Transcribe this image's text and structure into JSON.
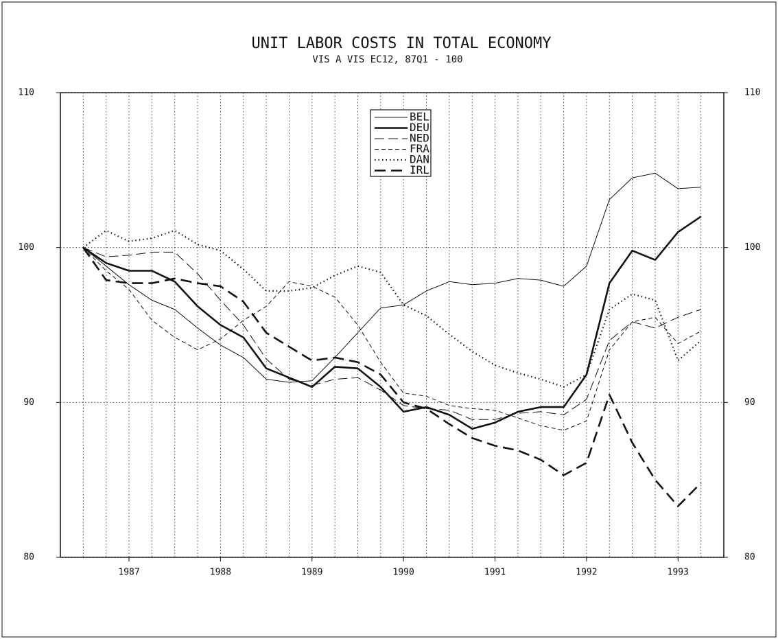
{
  "chart_data": {
    "type": "line",
    "title": "UNIT LABOR COSTS IN TOTAL ECONOMY",
    "subtitle": "VIS A VIS EC12, 87Q1 - 100",
    "x": [
      1987.0,
      1987.25,
      1987.5,
      1987.75,
      1988.0,
      1988.25,
      1988.5,
      1988.75,
      1989.0,
      1989.25,
      1989.5,
      1989.75,
      1990.0,
      1990.25,
      1990.5,
      1990.75,
      1991.0,
      1991.25,
      1991.5,
      1991.75,
      1992.0,
      1992.25,
      1992.5,
      1992.75,
      1993.0,
      1993.25,
      1993.5,
      1993.75
    ],
    "xlim": [
      1986.75,
      1994.0
    ],
    "xticks": [
      {
        "value": 1987.5,
        "label": "1987"
      },
      {
        "value": 1988.5,
        "label": "1988"
      },
      {
        "value": 1989.5,
        "label": "1989"
      },
      {
        "value": 1990.5,
        "label": "1990"
      },
      {
        "value": 1991.5,
        "label": "1991"
      },
      {
        "value": 1992.5,
        "label": "1992"
      },
      {
        "value": 1993.5,
        "label": "1993"
      }
    ],
    "ylim": [
      80,
      110
    ],
    "yticks": [
      80,
      90,
      100,
      110
    ],
    "y2lim": [
      80,
      110
    ],
    "y2ticks": [
      80,
      90,
      100,
      110
    ],
    "grid": true,
    "legend": "top-center",
    "series": [
      {
        "name": "BEL",
        "color": "#111111",
        "width": 1,
        "dash": "none",
        "values": [
          100,
          98.8,
          97.6,
          96.6,
          96.0,
          94.8,
          93.7,
          92.9,
          91.5,
          91.3,
          91.4,
          92.9,
          94.5,
          96.1,
          96.3,
          97.2,
          97.8,
          97.6,
          97.7,
          98.0,
          97.9,
          97.5,
          98.8,
          103.1,
          104.5,
          104.8,
          103.8,
          103.9
        ]
      },
      {
        "name": "DEU",
        "color": "#111111",
        "width": 2.6,
        "dash": "none",
        "values": [
          100,
          99.0,
          98.5,
          98.5,
          97.8,
          96.2,
          95.0,
          94.2,
          92.2,
          91.6,
          91.0,
          92.3,
          92.2,
          91.0,
          89.4,
          89.7,
          89.2,
          88.3,
          88.7,
          89.4,
          89.7,
          89.7,
          91.8,
          97.7,
          99.8,
          99.2,
          101.0,
          102.0
        ]
      },
      {
        "name": "NED",
        "color": "#111111",
        "width": 1,
        "dash": "14 6",
        "values": [
          100,
          99.4,
          99.5,
          99.7,
          99.7,
          98.3,
          96.6,
          95.0,
          92.8,
          91.5,
          91.1,
          91.5,
          91.6,
          90.8,
          89.8,
          89.6,
          89.5,
          88.9,
          88.9,
          89.3,
          89.4,
          89.2,
          90.2,
          94.0,
          95.2,
          94.8,
          95.5,
          96.0
        ]
      },
      {
        "name": "FRA",
        "color": "#111111",
        "width": 1,
        "dash": "6 4",
        "values": [
          100,
          98.5,
          97.3,
          95.3,
          94.2,
          93.4,
          94.1,
          95.3,
          96.2,
          97.8,
          97.5,
          96.8,
          95.0,
          92.6,
          90.6,
          90.4,
          89.8,
          89.6,
          89.5,
          89.0,
          88.5,
          88.2,
          88.8,
          93.4,
          95.2,
          95.5,
          93.8,
          94.6
        ]
      },
      {
        "name": "DAN",
        "color": "#111111",
        "width": 2.2,
        "dash": "1.5 4",
        "values": [
          100,
          101.1,
          100.4,
          100.6,
          101.1,
          100.2,
          99.8,
          98.6,
          97.2,
          97.2,
          97.4,
          98.2,
          98.8,
          98.4,
          96.3,
          95.6,
          94.4,
          93.3,
          92.4,
          91.9,
          91.5,
          91.0,
          91.8,
          96.0,
          97.0,
          96.6,
          92.7,
          94.0
        ]
      },
      {
        "name": "IRL",
        "color": "#111111",
        "width": 2.6,
        "dash": "16 8",
        "values": [
          100,
          97.9,
          97.7,
          97.7,
          98.0,
          97.7,
          97.5,
          96.5,
          94.5,
          93.6,
          92.7,
          92.9,
          92.6,
          91.8,
          90.0,
          89.6,
          88.6,
          87.7,
          87.2,
          86.9,
          86.3,
          85.3,
          86.1,
          90.5,
          87.4,
          85.0,
          83.3,
          84.8
        ]
      }
    ]
  }
}
